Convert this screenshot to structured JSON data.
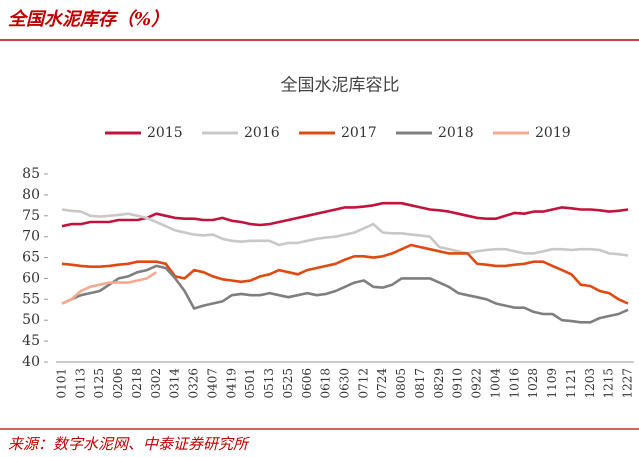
{
  "header": {
    "title": "全国水泥库存（%）"
  },
  "chart_data": {
    "type": "line",
    "title": "全国水泥库容比",
    "categories": [
      "0101",
      null,
      "0113",
      null,
      "0125",
      null,
      "0206",
      null,
      "0218",
      null,
      "0302",
      null,
      "0314",
      null,
      "0326",
      null,
      "0407",
      null,
      "0419",
      null,
      "0501",
      null,
      "0513",
      null,
      "0525",
      null,
      "0606",
      null,
      "0618",
      null,
      "0630",
      null,
      "0712",
      null,
      "0724",
      null,
      "0805",
      null,
      "0817",
      null,
      "0829",
      null,
      "0910",
      null,
      "0922",
      null,
      "1004",
      null,
      "1016",
      null,
      "1028",
      null,
      "1109",
      null,
      "1121",
      null,
      "1203",
      null,
      "1215",
      null,
      "1227"
    ],
    "series": [
      {
        "name": "2015",
        "color": "#c0143c",
        "values": [
          72.5,
          73,
          73,
          73.5,
          73.5,
          73.5,
          74,
          74,
          74,
          74.5,
          75.5,
          75,
          74.5,
          74.3,
          74.3,
          74,
          74,
          74.5,
          73.8,
          73.5,
          73,
          72.8,
          73,
          73.5,
          74,
          74.5,
          75,
          75.5,
          76,
          76.5,
          77,
          77,
          77.2,
          77.5,
          78,
          78,
          78,
          77.5,
          77,
          76.5,
          76.3,
          76,
          75.5,
          75,
          74.5,
          74.3,
          74.3,
          75,
          75.7,
          75.5,
          76,
          76,
          76.5,
          77,
          76.8,
          76.5,
          76.5,
          76.3,
          76,
          76.2,
          76.5
        ]
      },
      {
        "name": "2016",
        "color": "#c8c8c8",
        "values": [
          76.5,
          76.2,
          76,
          75,
          74.8,
          75,
          75.2,
          75.5,
          75,
          74.5,
          73.5,
          72.5,
          71.5,
          71,
          70.5,
          70.3,
          70.5,
          69.5,
          69,
          68.8,
          69,
          69,
          69,
          68,
          68.5,
          68.5,
          69,
          69.5,
          69.8,
          70,
          70.5,
          71,
          72,
          73,
          71,
          70.8,
          70.8,
          70.5,
          70.3,
          70,
          67.5,
          67,
          66.5,
          66,
          66.5,
          66.8,
          67,
          67,
          66.5,
          66,
          66,
          66.5,
          67,
          67,
          66.8,
          67,
          67,
          66.8,
          66,
          65.8,
          65.5
        ]
      },
      {
        "name": "2017",
        "color": "#e04a10",
        "values": [
          63.5,
          63.3,
          63,
          62.8,
          62.8,
          63,
          63.3,
          63.5,
          64,
          64,
          64,
          63.5,
          60.5,
          60,
          62,
          61.5,
          60.5,
          59.8,
          59.5,
          59.2,
          59.5,
          60.5,
          61,
          62,
          61.5,
          61,
          62,
          62.5,
          63,
          63.5,
          64.5,
          65.3,
          65.3,
          65,
          65.3,
          66,
          67,
          68,
          67.5,
          67,
          66.5,
          66,
          66,
          66,
          63.5,
          63.3,
          63,
          63,
          63.3,
          63.5,
          64,
          64,
          63,
          62,
          61,
          58.5,
          58.2,
          57,
          56.5,
          55,
          54
        ]
      },
      {
        "name": "2018",
        "color": "#7f7f7f",
        "values": [
          54,
          55,
          56,
          56.5,
          57,
          58.5,
          60,
          60.5,
          61.5,
          62,
          63,
          62.5,
          60,
          57,
          52.8,
          53.5,
          54,
          54.5,
          56,
          56.3,
          56,
          56,
          56.5,
          56,
          55.5,
          56,
          56.5,
          56,
          56.3,
          57,
          58,
          59,
          59.5,
          58,
          57.8,
          58.5,
          60,
          60,
          60,
          60,
          59,
          58,
          56.5,
          56,
          55.5,
          55,
          54,
          53.5,
          53,
          53,
          52,
          51.5,
          51.5,
          50,
          49.8,
          49.5,
          49.5,
          50.5,
          51,
          51.5,
          52.5
        ]
      },
      {
        "name": "2019",
        "color": "#f4a990",
        "values": [
          54,
          55,
          57,
          58,
          58.5,
          59,
          59,
          59,
          59.5,
          60,
          61.5,
          null,
          null,
          null,
          null,
          null,
          null,
          null,
          null,
          null,
          null,
          null,
          null,
          null,
          null,
          null,
          null,
          null,
          null,
          null,
          null,
          null,
          null,
          null,
          null,
          null,
          null,
          null,
          null,
          null,
          null,
          null,
          null,
          null,
          null,
          null,
          null,
          null,
          null,
          null,
          null,
          null,
          null,
          null,
          null,
          null,
          null,
          null,
          null,
          null,
          null
        ]
      }
    ],
    "ylim": [
      40,
      85
    ],
    "yticks": [
      40,
      45,
      50,
      55,
      60,
      65,
      70,
      75,
      80,
      85
    ],
    "legend": "top"
  },
  "footer": {
    "source": "来源：数字水泥网、中泰证券研究所"
  }
}
